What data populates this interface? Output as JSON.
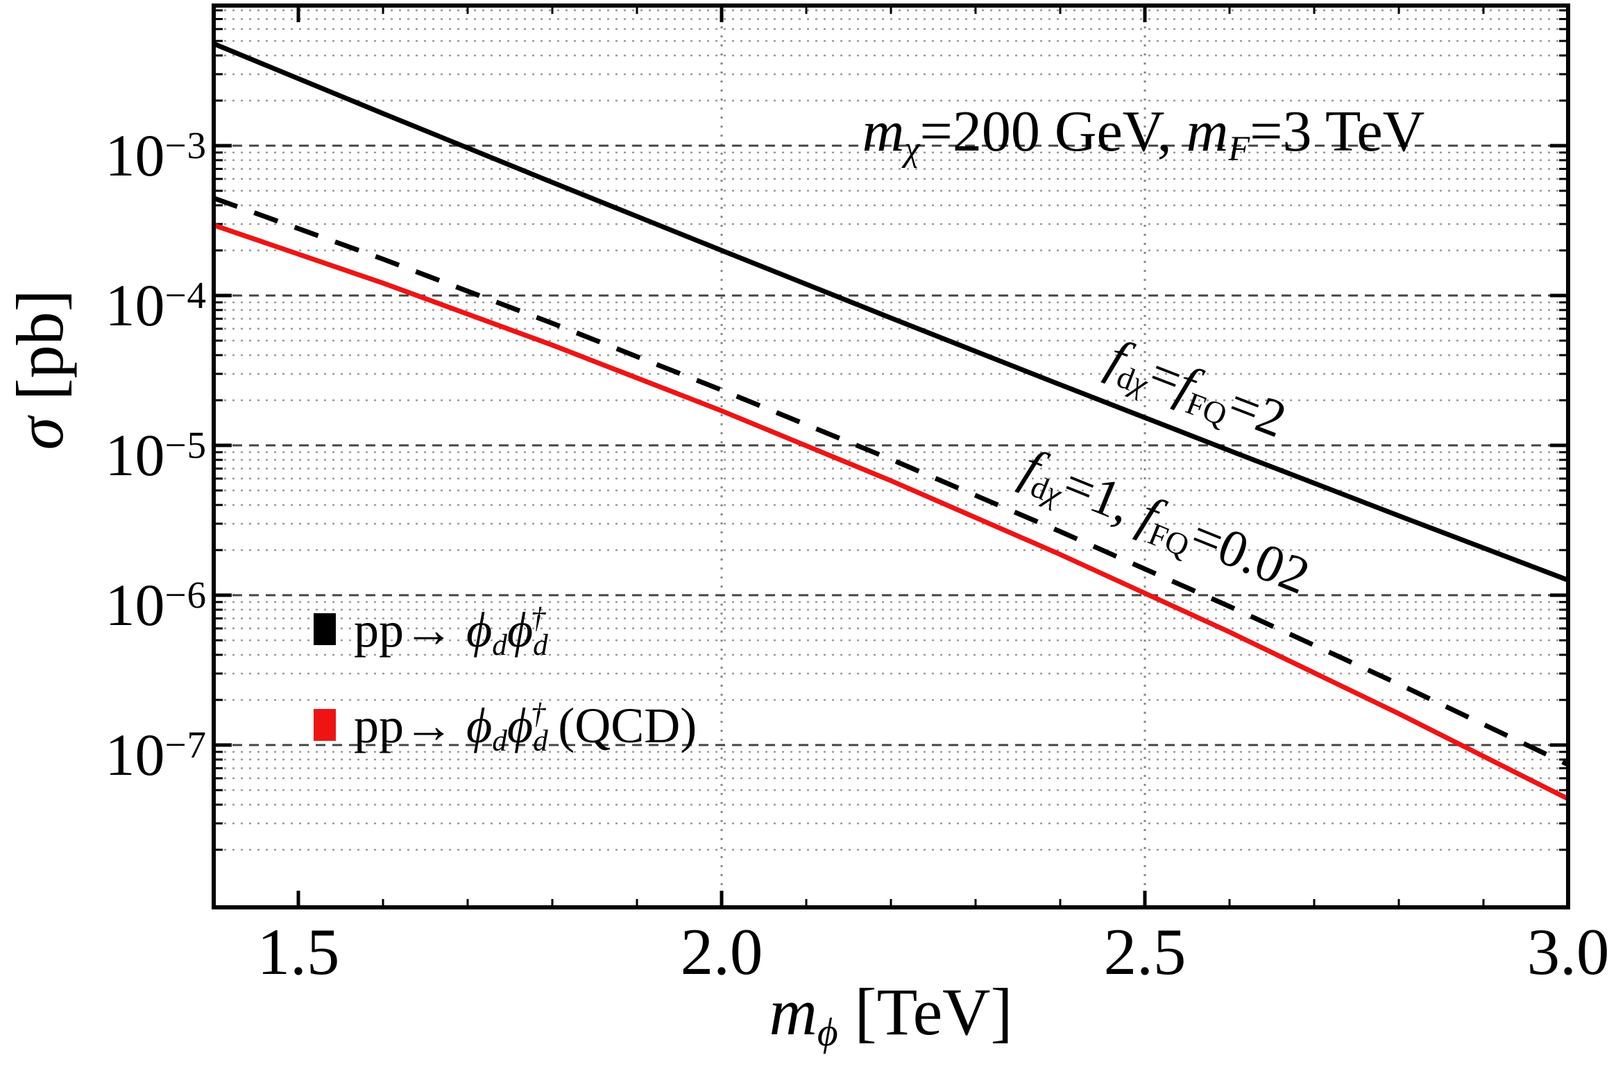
{
  "figure": {
    "y_axis_title_html": "<i>σ</i> [pb]",
    "x_axis_title_html": "<i>m</i><sub><i>ϕ</i></sub> [TeV]",
    "annotation_html": "<i>m</i><sub><i>χ</i></sub>=200 GeV, <i>m</i><sub><i>F</i></sub>=3 TeV",
    "curve_label_solid_html": "<i>f</i><sub>d<i>χ</i></sub>=<i>f</i><sub>FQ</sub>=2",
    "curve_label_dashed_html": "<i>f</i><sub>d<i>χ</i></sub>=1, <i>f</i><sub>FQ</sub>=0.02"
  },
  "legend": {
    "entries": [
      {
        "color": "#000000",
        "label_html": "pp→ <i>ϕ<sub>d</sub>ϕ<sub>d</sub><sup>†</sup></i>",
        "label_text": "pp -> phi_d phi_d^dagger"
      },
      {
        "color": "#ee1414",
        "label_html": "pp→ <i>ϕ<sub>d</sub>ϕ<sub>d</sub><sup>†</sup></i> (QCD)",
        "label_text": "pp -> phi_d phi_d^dagger (QCD)"
      }
    ]
  },
  "chart_data": {
    "type": "line",
    "title": "",
    "xlabel": "m_phi [TeV]",
    "ylabel": "sigma [pb]",
    "annotation": "m_chi=200 GeV, m_F=3 TeV",
    "x_range": [
      1.4,
      3.0
    ],
    "y_log10_range": [
      -8.08,
      -2.06
    ],
    "x_axis": {
      "tick_values": [
        1.5,
        2.0,
        2.5,
        3.0
      ],
      "tick_labels": [
        "1.5",
        "2.0",
        "2.5",
        "3.0"
      ],
      "minor_tick_step": 0.1
    },
    "y_axis": {
      "scale": "log",
      "major_tick_exponents": [
        -3,
        -4,
        -5,
        -6,
        -7
      ]
    },
    "grid": {
      "x_gridlines": [
        2.0,
        2.5
      ],
      "y_gridlines": "log minor and major, dotted",
      "style": "dotted"
    },
    "x": [
      1.4,
      1.6,
      1.8,
      2.0,
      2.2,
      2.4,
      2.6,
      2.8,
      3.0
    ],
    "series": [
      {
        "name": "pp -> phi_d phi_d^dagger (f_dchi = f_FQ = 2)",
        "color": "#000000",
        "dash": "solid",
        "sigma_pb": [
          0.00479,
          0.00164,
          0.000569,
          0.0002,
          7.08e-05,
          2.54e-05,
          9.23e-06,
          3.39e-06,
          1.26e-06
        ]
      },
      {
        "name": "pp -> phi_d phi_d^dagger (f_dchi = 1, f_FQ = 0.02)",
        "color": "#000000",
        "dash": "dashed",
        "sigma_pb": [
          0.000447,
          0.000175,
          6.53e-05,
          2.34e-05,
          8.07e-06,
          2.66e-06,
          8.41e-07,
          2.55e-07,
          7.4e-08
        ]
      },
      {
        "name": "pp -> phi_d phi_d^dagger (QCD)",
        "color": "#ee1414",
        "dash": "solid",
        "sigma_pb": [
          0.000295,
          0.000121,
          4.67e-05,
          1.7e-05,
          5.81e-06,
          1.87e-06,
          5.68e-07,
          1.62e-07,
          4.37e-08
        ]
      }
    ]
  }
}
